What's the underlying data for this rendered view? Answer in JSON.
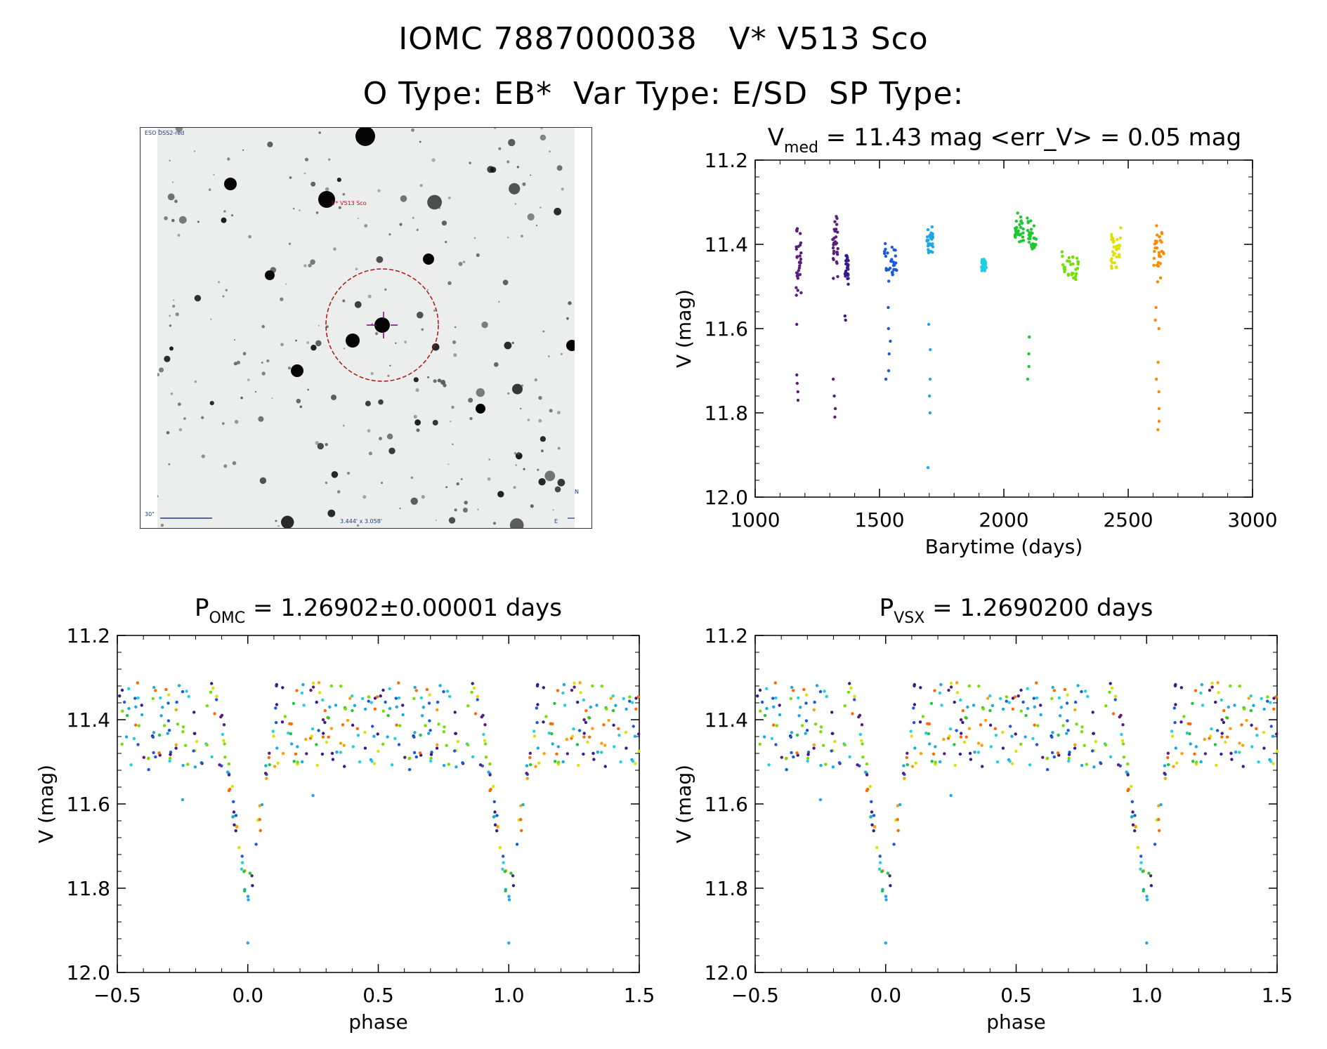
{
  "header": {
    "line1": "IOMC 7887000038   V* V513 Sco",
    "line2": "O Type: EB*  Var Type: E/SD  SP Type:"
  },
  "finder_chart": {
    "survey_label": "ESO DSS2-red",
    "target_label": "V* V513 Sco",
    "scale_label": "30\"",
    "fov_label": "3.444' x 3.058'",
    "north_label": "N",
    "east_label": "E"
  },
  "colors": {
    "season_palette": [
      "#5a1e7a",
      "#3a1a8a",
      "#1a5ad8",
      "#1aa8e8",
      "#20d0e0",
      "#20c830",
      "#70e000",
      "#e0e000",
      "#ffa000",
      "#ff6a00"
    ]
  },
  "chart_data": [
    {
      "id": "lightcurve_time",
      "type": "scatter",
      "title_main": "V",
      "title_sub": "med",
      "title_rest": " = 11.43 mag <err_V> = 0.05 mag",
      "xlabel": "Barytime (days)",
      "ylabel": "V (mag)",
      "xlim": [
        1000,
        3000
      ],
      "ylim": [
        12.0,
        11.2
      ],
      "xticks": [
        "1000",
        "1500",
        "2000",
        "2500",
        "3000"
      ],
      "yticks": [
        "11.2",
        "11.4",
        "11.6",
        "11.8",
        "12.0"
      ],
      "seasons": [
        {
          "x0": 1165,
          "x1": 1185,
          "y_lo": 11.33,
          "y_hi": 11.54,
          "extra": [
            11.59,
            11.71,
            11.73,
            11.75,
            11.77
          ],
          "color": "#5a1e7a"
        },
        {
          "x0": 1310,
          "x1": 1335,
          "y_lo": 11.32,
          "y_hi": 11.49,
          "extra": [
            11.72,
            11.76,
            11.79,
            11.81
          ],
          "color": "#5a1e7a"
        },
        {
          "x0": 1360,
          "x1": 1375,
          "y_lo": 11.4,
          "y_hi": 11.51,
          "extra": [
            11.57,
            11.58
          ],
          "color": "#3a1a8a"
        },
        {
          "x0": 1520,
          "x1": 1570,
          "y_lo": 11.36,
          "y_hi": 11.52,
          "extra": [
            11.55,
            11.6,
            11.63,
            11.66,
            11.7,
            11.72
          ],
          "color": "#1a5ad8"
        },
        {
          "x0": 1690,
          "x1": 1720,
          "y_lo": 11.34,
          "y_hi": 11.44,
          "extra": [
            11.59,
            11.65,
            11.72,
            11.76,
            11.8,
            11.93
          ],
          "color": "#1aa8e8"
        },
        {
          "x0": 1910,
          "x1": 1930,
          "y_lo": 11.43,
          "y_hi": 11.47,
          "extra": [],
          "color": "#20d0e0"
        },
        {
          "x0": 2040,
          "x1": 2080,
          "y_lo": 11.31,
          "y_hi": 11.42,
          "extra": [],
          "color": "#20c830"
        },
        {
          "x0": 2090,
          "x1": 2130,
          "y_lo": 11.32,
          "y_hi": 11.46,
          "extra": [
            11.62,
            11.66,
            11.69,
            11.72
          ],
          "color": "#20c830"
        },
        {
          "x0": 2230,
          "x1": 2300,
          "y_lo": 11.39,
          "y_hi": 11.5,
          "extra": [],
          "color": "#70e000"
        },
        {
          "x0": 2430,
          "x1": 2470,
          "y_lo": 11.34,
          "y_hi": 11.49,
          "extra": [],
          "color": "#e0e000"
        },
        {
          "x0": 2600,
          "x1": 2650,
          "y_lo": 11.32,
          "y_hi": 11.51,
          "extra": [
            11.55,
            11.58,
            11.6,
            11.68,
            11.72,
            11.75,
            11.79,
            11.82,
            11.84
          ],
          "color": "#ff8a00"
        }
      ]
    },
    {
      "id": "phased_omc",
      "type": "scatter",
      "title_main": "P",
      "title_sub": "OMC",
      "title_rest": " = 1.26902±0.00001 days",
      "period_days": 1.26902,
      "period_err_days": 1e-05,
      "xlabel": "phase",
      "ylabel": "V (mag)",
      "xlim": [
        -0.5,
        1.5
      ],
      "ylim": [
        12.0,
        11.2
      ],
      "xticks": [
        "−0.5",
        "0.0",
        "0.5",
        "1.0",
        "1.5"
      ],
      "yticks": [
        "11.2",
        "11.4",
        "11.6",
        "11.8",
        "12.0"
      ],
      "out_of_eclipse_mag": [
        11.31,
        11.52
      ],
      "primary_eclipse": {
        "phase": 0.0,
        "min_mag": 11.84,
        "width": 0.2
      },
      "outlier_points": [
        [
          0.0,
          11.93
        ],
        [
          1.0,
          11.93
        ],
        [
          -0.25,
          11.59
        ],
        [
          0.25,
          11.58
        ]
      ]
    },
    {
      "id": "phased_vsx",
      "type": "scatter",
      "title_main": "P",
      "title_sub": "VSX",
      "title_rest": " = 1.2690200 days",
      "period_days": 1.26902,
      "xlabel": "phase",
      "ylabel": "V (mag)",
      "xlim": [
        -0.5,
        1.5
      ],
      "ylim": [
        12.0,
        11.2
      ],
      "xticks": [
        "−0.5",
        "0.0",
        "0.5",
        "1.0",
        "1.5"
      ],
      "yticks": [
        "11.2",
        "11.4",
        "11.6",
        "11.8",
        "12.0"
      ],
      "out_of_eclipse_mag": [
        11.31,
        11.52
      ],
      "primary_eclipse": {
        "phase": 0.0,
        "min_mag": 11.84,
        "width": 0.2
      },
      "outlier_points": [
        [
          0.0,
          11.93
        ],
        [
          1.0,
          11.93
        ],
        [
          -0.25,
          11.59
        ],
        [
          0.25,
          11.58
        ]
      ]
    }
  ]
}
